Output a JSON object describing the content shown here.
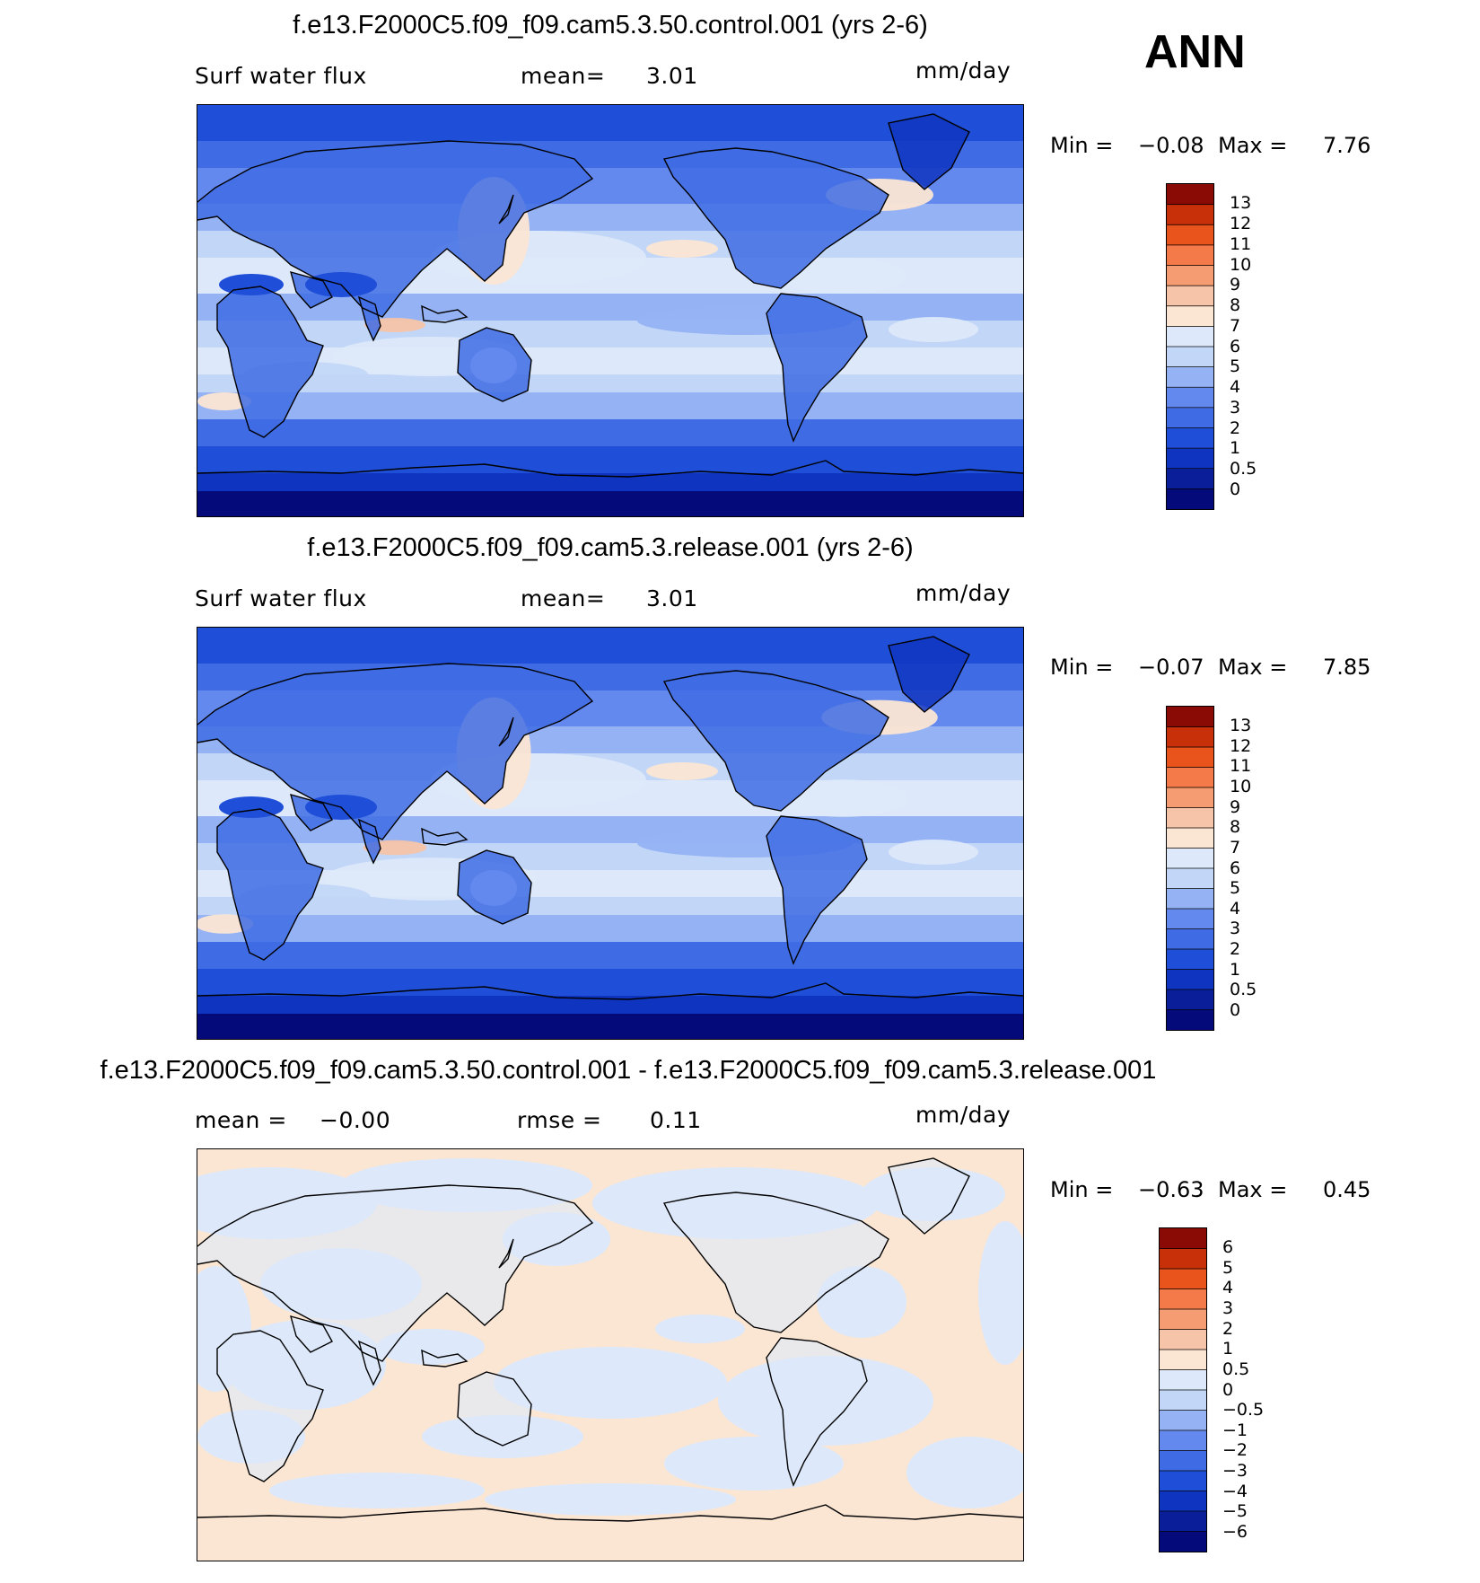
{
  "season": "ANN",
  "colors": {
    "abs_palette": [
      "#040a7a",
      "#0a1e9a",
      "#0f35c0",
      "#1f4fd8",
      "#3f6ce4",
      "#6389ef",
      "#95b3f4",
      "#c2d7f8",
      "#dde9fa",
      "#fbe6d4",
      "#f6c4a8",
      "#f59c73",
      "#f47a4a",
      "#e9541c",
      "#c8300a",
      "#8a0a06"
    ],
    "diff_palette": [
      "#040a7a",
      "#0a1e9a",
      "#0f35c0",
      "#1f4fd8",
      "#3f6ce4",
      "#6389ef",
      "#95b3f4",
      "#c2d7f8",
      "#dde9fa",
      "#fbe6d4",
      "#f6c4a8",
      "#f59c73",
      "#f47a4a",
      "#e9541c",
      "#c8300a",
      "#8a0a06"
    ],
    "coastline": "#000000"
  },
  "panels": [
    {
      "title": "f.e13.F2000C5.f09_f09.cam5.3.50.control.001 (yrs 2-6)",
      "left_label": "Surf water flux",
      "center_label": "mean=",
      "center_value": "3.01",
      "units": "mm/day",
      "min_label": "Min =",
      "min_value": "−0.08",
      "max_label": "Max =",
      "max_value": "7.76",
      "field": "abs",
      "colorbar_ticks": [
        "13",
        "12",
        "11",
        "10",
        "9",
        "8",
        "7",
        "6",
        "5",
        "4",
        "3",
        "2",
        "1",
        "0.5",
        "0"
      ]
    },
    {
      "title": "f.e13.F2000C5.f09_f09.cam5.3.release.001 (yrs 2-6)",
      "left_label": "Surf water flux",
      "center_label": "mean=",
      "center_value": "3.01",
      "units": "mm/day",
      "min_label": "Min =",
      "min_value": "−0.07",
      "max_label": "Max =",
      "max_value": "7.85",
      "field": "abs",
      "colorbar_ticks": [
        "13",
        "12",
        "11",
        "10",
        "9",
        "8",
        "7",
        "6",
        "5",
        "4",
        "3",
        "2",
        "1",
        "0.5",
        "0"
      ]
    },
    {
      "title": "f.e13.F2000C5.f09_f09.cam5.3.50.control.001 - f.e13.F2000C5.f09_f09.cam5.3.release.001",
      "left_label": "mean =",
      "left_value": "−0.00",
      "center_label": "rmse =",
      "center_value": "0.11",
      "units": "mm/day",
      "min_label": "Min =",
      "min_value": "−0.63",
      "max_label": "Max =",
      "max_value": "0.45",
      "field": "diff",
      "colorbar_ticks": [
        "6",
        "5",
        "4",
        "3",
        "2",
        "1",
        "0.5",
        "0",
        "−0.5",
        "−1",
        "−2",
        "−3",
        "−4",
        "−5",
        "−6"
      ]
    }
  ],
  "chart_data": [
    {
      "type": "heatmap",
      "title": "f.e13.F2000C5.f09_f09.cam5.3.50.control.001 (yrs 2-6)",
      "variable": "Surf water flux",
      "units": "mm/day",
      "mean": 3.01,
      "min": -0.08,
      "max": 7.76,
      "contour_levels": [
        0,
        0.5,
        1,
        2,
        3,
        4,
        5,
        6,
        7,
        8,
        9,
        10,
        11,
        12,
        13
      ]
    },
    {
      "type": "heatmap",
      "title": "f.e13.F2000C5.f09_f09.cam5.3.release.001 (yrs 2-6)",
      "variable": "Surf water flux",
      "units": "mm/day",
      "mean": 3.01,
      "min": -0.07,
      "max": 7.85,
      "contour_levels": [
        0,
        0.5,
        1,
        2,
        3,
        4,
        5,
        6,
        7,
        8,
        9,
        10,
        11,
        12,
        13
      ]
    },
    {
      "type": "heatmap",
      "title": "f.e13.F2000C5.f09_f09.cam5.3.50.control.001 - f.e13.F2000C5.f09_f09.cam5.3.release.001",
      "units": "mm/day",
      "mean": -0.0,
      "rmse": 0.11,
      "min": -0.63,
      "max": 0.45,
      "contour_levels": [
        -6,
        -5,
        -4,
        -3,
        -2,
        -1,
        -0.5,
        0,
        0.5,
        1,
        2,
        3,
        4,
        5,
        6
      ]
    }
  ]
}
